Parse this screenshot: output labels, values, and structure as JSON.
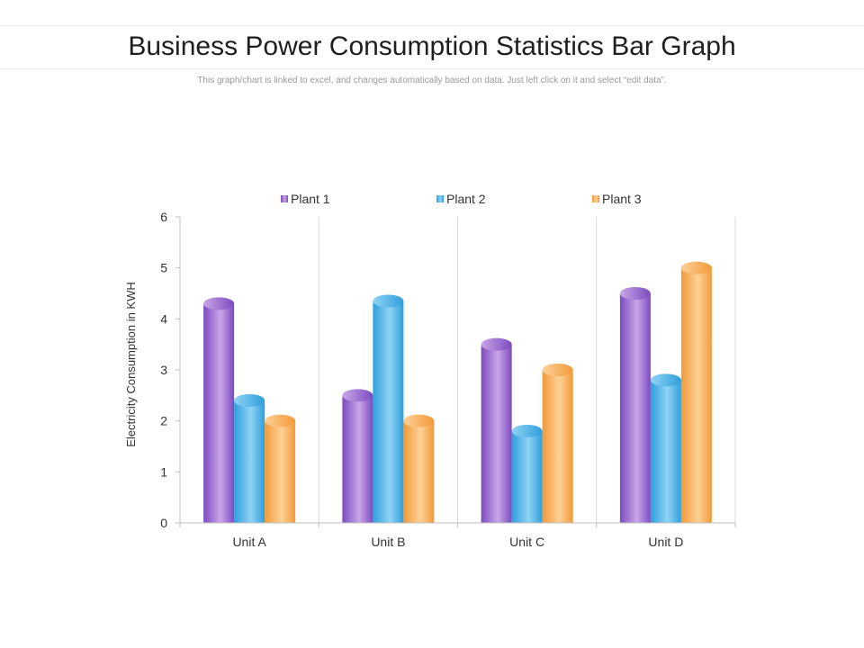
{
  "page": {
    "title": "Business Power Consumption Statistics Bar Graph",
    "subtitle": "This graph/chart is linked to excel, and changes automatically based on data. Just left click on it and select “edit data”."
  },
  "chart_data": {
    "type": "bar",
    "title": "",
    "xlabel": "",
    "ylabel": "Electricity Consumption in KWH",
    "categories": [
      "Unit A",
      "Unit B",
      "Unit C",
      "Unit D"
    ],
    "series": [
      {
        "name": "Plant 1",
        "values": [
          4.3,
          2.5,
          3.5,
          4.5
        ],
        "color": "#7b4bbf",
        "color_light": "#c9a6e8"
      },
      {
        "name": "Plant 2",
        "values": [
          2.4,
          4.35,
          1.8,
          2.8
        ],
        "color": "#2e9fdc",
        "color_light": "#8fd3f4"
      },
      {
        "name": "Plant 3",
        "values": [
          2.0,
          2.0,
          3.0,
          5.0
        ],
        "color": "#f29a38",
        "color_light": "#fdd197"
      }
    ],
    "ylim": [
      0,
      6
    ],
    "yticks": [
      0,
      1,
      2,
      3,
      4,
      5,
      6
    ],
    "legend_position": "top-center",
    "grid": "vertical separators between categories"
  }
}
